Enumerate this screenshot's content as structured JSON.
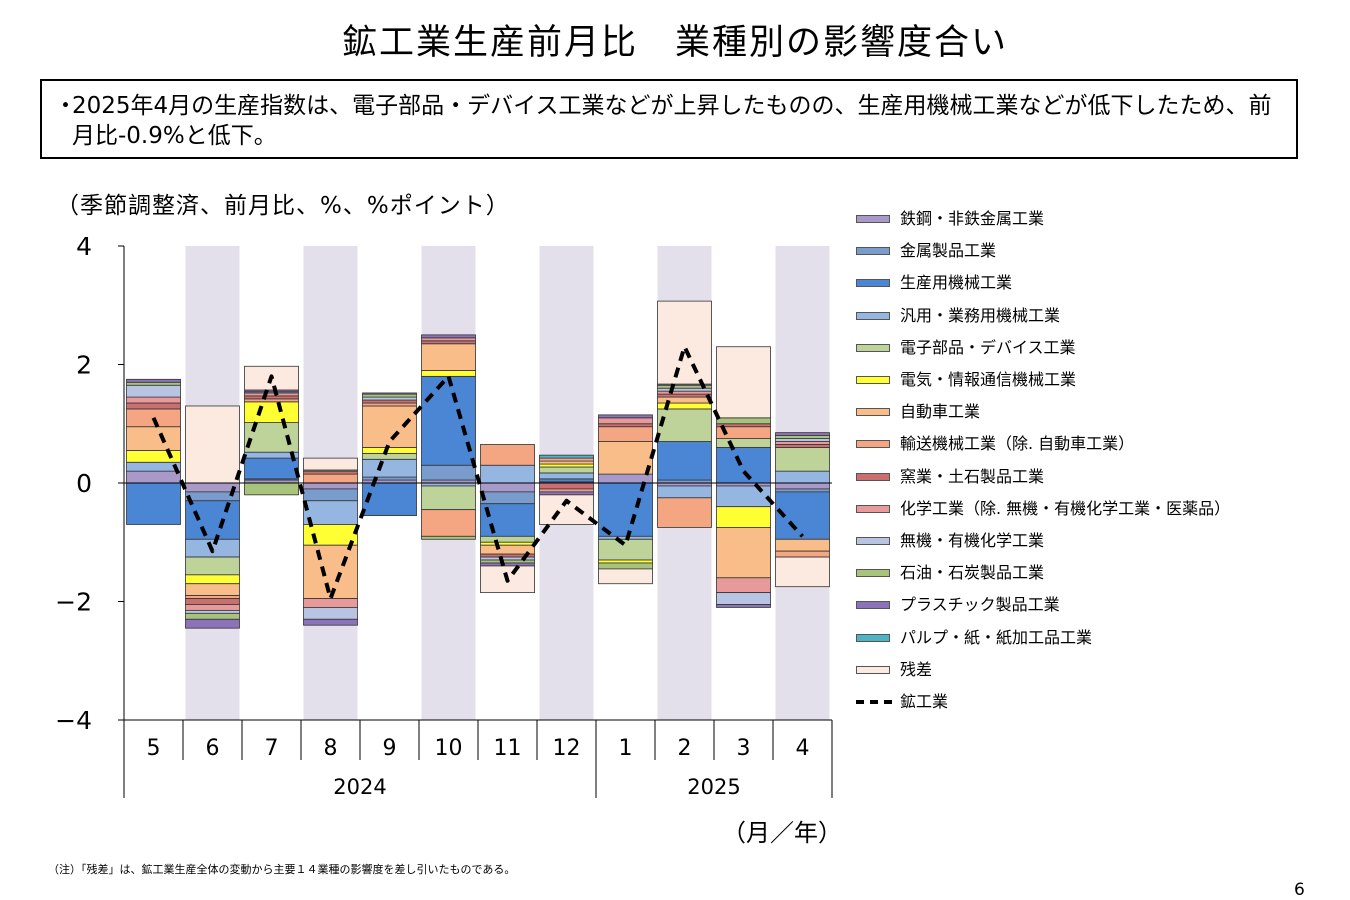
{
  "title": "鉱工業生産前月比　業種別の影響度合い",
  "summary": {
    "bullet": "・",
    "text": "2025年4月の生産指数は、電子部品・デバイス工業などが上昇したものの、生産用機械工業などが低下したため、前月比-0.9%と低下。"
  },
  "unit_label": "（季節調整済、前月比、%、%ポイント）",
  "axis_unit": "（月／年）",
  "note": "（注）「残差」は、鉱工業生産全体の変動から主要１４業種の影響度を差し引いたものである。",
  "page_number": "6",
  "chart_data": {
    "type": "bar",
    "stacked": true,
    "ylim": [
      -4,
      4
    ],
    "yticks": [
      "4",
      "2",
      "0",
      "−2",
      "−4"
    ],
    "ytick_values": [
      4,
      2,
      0,
      -2,
      -4
    ],
    "categories": [
      "5",
      "6",
      "7",
      "8",
      "9",
      "10",
      "11",
      "12",
      "1",
      "2",
      "3",
      "4"
    ],
    "years": [
      {
        "label": "2024",
        "first": 0,
        "last": 7
      },
      {
        "label": "2025",
        "first": 8,
        "last": 11
      }
    ],
    "shaded_columns": [
      1,
      3,
      5,
      7,
      9,
      11
    ],
    "shade_color": "#e3e0ec",
    "legend_placement": "right",
    "series": [
      {
        "name": "鉄鋼・非鉄金属工業",
        "color": "#a899c9",
        "values": [
          0.2,
          -0.15,
          0.05,
          -0.1,
          0.05,
          0.05,
          -0.15,
          0.0,
          0.15,
          -0.05,
          -0.05,
          -0.1
        ]
      },
      {
        "name": "金属製品工業",
        "color": "#7a9ccd",
        "values": [
          0.0,
          -0.15,
          0.02,
          -0.2,
          0.05,
          0.25,
          -0.2,
          0.02,
          0.0,
          0.05,
          0.0,
          -0.05
        ]
      },
      {
        "name": "生産用機械工業",
        "color": "#4a86d4",
        "values": [
          -0.7,
          -0.65,
          0.35,
          0.0,
          -0.55,
          1.5,
          -0.55,
          0.05,
          -0.9,
          0.65,
          0.6,
          -0.8
        ]
      },
      {
        "name": "汎用・業務用機械工業",
        "color": "#95b6e0",
        "values": [
          0.15,
          -0.3,
          0.1,
          -0.4,
          0.3,
          -0.05,
          0.3,
          0.1,
          -0.05,
          -0.2,
          -0.35,
          0.2
        ]
      },
      {
        "name": "電子部品・デバイス工業",
        "color": "#bdd39a",
        "values": [
          0.0,
          -0.3,
          0.5,
          0.0,
          0.1,
          -0.4,
          -0.1,
          0.1,
          -0.35,
          0.55,
          0.15,
          0.4
        ]
      },
      {
        "name": "電気・情報通信機械工業",
        "color": "#ffff33",
        "values": [
          0.2,
          -0.15,
          0.35,
          -0.35,
          0.1,
          0.1,
          -0.05,
          0.05,
          -0.05,
          0.1,
          -0.35,
          0.0
        ]
      },
      {
        "name": "自動車工業",
        "color": "#f8bd88",
        "values": [
          0.4,
          -0.2,
          0.0,
          -0.9,
          0.7,
          0.45,
          -0.15,
          0.05,
          0.55,
          0.1,
          -0.85,
          -0.2
        ]
      },
      {
        "name": "輸送機械工業（除. 自動車工業）",
        "color": "#f4a582",
        "values": [
          0.3,
          -0.05,
          0.05,
          0.15,
          0.05,
          -0.45,
          0.35,
          0.05,
          0.25,
          -0.5,
          0.2,
          -0.1
        ]
      },
      {
        "name": "窯業・土石製品工業",
        "color": "#c96f6f",
        "values": [
          0.1,
          -0.1,
          0.05,
          0.05,
          0.05,
          0.05,
          -0.05,
          -0.1,
          0.05,
          0.05,
          0.05,
          0.05
        ]
      },
      {
        "name": "化学工業（除. 無機・有機化学工業・医薬品）",
        "color": "#e89a9a",
        "values": [
          0.1,
          -0.1,
          0.05,
          -0.15,
          0.0,
          0.05,
          0.0,
          -0.05,
          0.1,
          0.05,
          -0.25,
          0.05
        ]
      },
      {
        "name": "無機・有機化学工業",
        "color": "#b7c5e3",
        "values": [
          0.2,
          -0.05,
          0.02,
          -0.2,
          0.05,
          0.0,
          -0.05,
          0.0,
          0.0,
          0.05,
          -0.2,
          0.05
        ]
      },
      {
        "name": "石油・石炭製品工業",
        "color": "#a8c47c",
        "values": [
          0.05,
          -0.1,
          -0.2,
          0.02,
          0.05,
          -0.05,
          -0.05,
          0.0,
          -0.1,
          0.05,
          0.1,
          0.05
        ]
      },
      {
        "name": "プラスチック製品工業",
        "color": "#8c72b8",
        "values": [
          0.05,
          -0.15,
          0.03,
          -0.1,
          0.02,
          0.05,
          -0.05,
          -0.05,
          0.05,
          0.02,
          -0.05,
          0.05
        ]
      },
      {
        "name": "パルプ・紙・紙加工品工業",
        "color": "#4fb3c6",
        "values": [
          0.0,
          0.0,
          0.0,
          0.0,
          0.0,
          0.0,
          0.0,
          0.05,
          0.0,
          0.0,
          0.0,
          0.0
        ]
      },
      {
        "name": "残差",
        "color": "#fce9df",
        "values": [
          0.0,
          1.3,
          0.4,
          0.2,
          0.0,
          0.0,
          -0.45,
          -0.5,
          -0.25,
          1.4,
          1.2,
          -0.5
        ]
      }
    ],
    "line": {
      "name": "鉱工業",
      "values": [
        1.1,
        -1.15,
        1.8,
        -1.95,
        0.7,
        1.8,
        -1.65,
        -0.3,
        -1.05,
        2.3,
        0.2,
        -0.9
      ]
    }
  }
}
